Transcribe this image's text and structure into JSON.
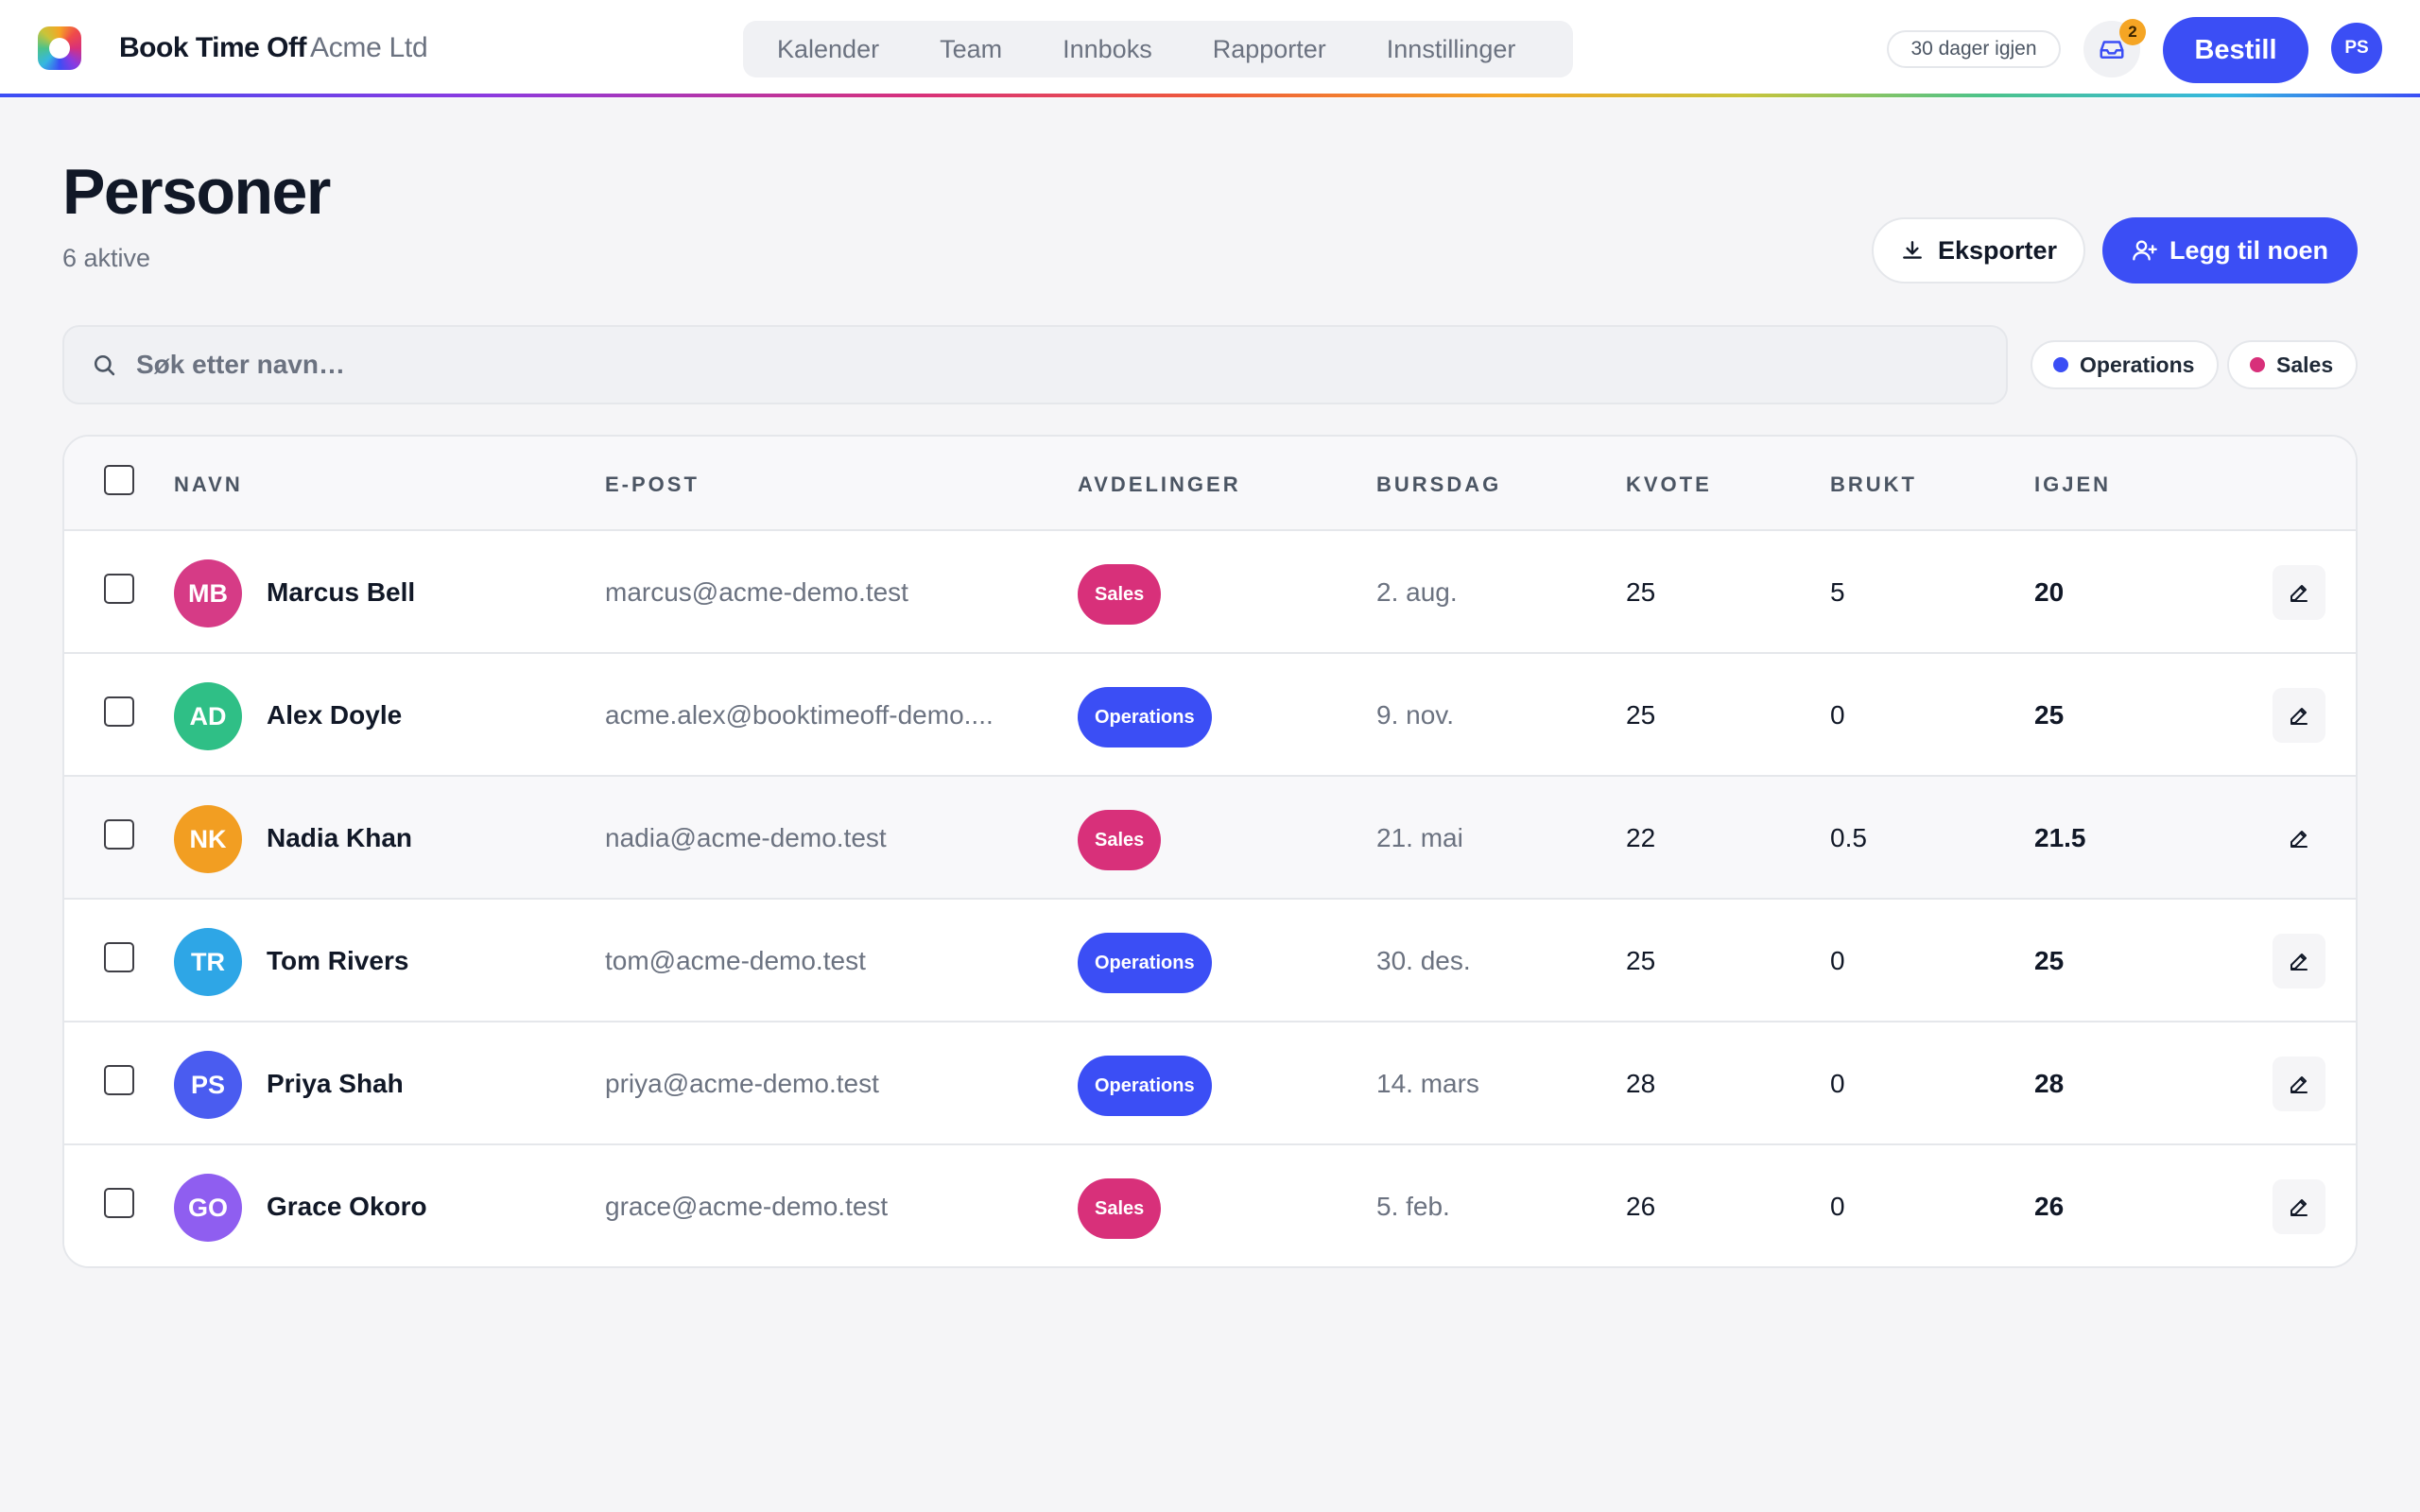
{
  "header": {
    "brand": "Book Time Off",
    "org": "Acme Ltd",
    "nav": [
      "Kalender",
      "Team",
      "Innboks",
      "Rapporter",
      "Innstillinger"
    ],
    "trial_label": "30 dager igjen",
    "inbox_count": "2",
    "order_label": "Bestill",
    "user_initials": "PS"
  },
  "page": {
    "title": "Personer",
    "subtitle": "6 aktive",
    "export_label": "Eksporter",
    "add_label": "Legg til noen"
  },
  "search": {
    "placeholder": "Søk etter navn…"
  },
  "filters": [
    {
      "label": "Operations",
      "color": "#3b4ef5"
    },
    {
      "label": "Sales",
      "color": "#d8307a"
    }
  ],
  "table": {
    "columns": [
      "NAVN",
      "E-POST",
      "AVDELINGER",
      "BURSDAG",
      "KVOTE",
      "BRUKT",
      "IGJEN"
    ],
    "rows": [
      {
        "initials": "MB",
        "avatar_color": "#d63b86",
        "name": "Marcus Bell",
        "email": "marcus@acme-demo.test",
        "dept": "Sales",
        "dept_color": "#d8307a",
        "birthday": "2. aug.",
        "quota": "25",
        "used": "5",
        "left": "20"
      },
      {
        "initials": "AD",
        "avatar_color": "#2fbf86",
        "name": "Alex Doyle",
        "email": "acme.alex@booktimeoff-demo....",
        "dept": "Operations",
        "dept_color": "#3b4ef5",
        "birthday": "9. nov.",
        "quota": "25",
        "used": "0",
        "left": "25"
      },
      {
        "initials": "NK",
        "avatar_color": "#f29e22",
        "name": "Nadia Khan",
        "email": "nadia@acme-demo.test",
        "dept": "Sales",
        "dept_color": "#d8307a",
        "birthday": "21. mai",
        "quota": "22",
        "used": "0.5",
        "left": "21.5"
      },
      {
        "initials": "TR",
        "avatar_color": "#2ea6e6",
        "name": "Tom Rivers",
        "email": "tom@acme-demo.test",
        "dept": "Operations",
        "dept_color": "#3b4ef5",
        "birthday": "30. des.",
        "quota": "25",
        "used": "0",
        "left": "25"
      },
      {
        "initials": "PS",
        "avatar_color": "#4a5cf0",
        "name": "Priya Shah",
        "email": "priya@acme-demo.test",
        "dept": "Operations",
        "dept_color": "#3b4ef5",
        "birthday": "14. mars",
        "quota": "28",
        "used": "0",
        "left": "28"
      },
      {
        "initials": "GO",
        "avatar_color": "#8f5ef0",
        "name": "Grace Okoro",
        "email": "grace@acme-demo.test",
        "dept": "Sales",
        "dept_color": "#d8307a",
        "birthday": "5. feb.",
        "quota": "26",
        "used": "0",
        "left": "26"
      }
    ]
  },
  "icons": {
    "inbox": "inbox-icon",
    "download": "download-icon",
    "add_user": "user-plus-icon",
    "search": "search-icon",
    "edit": "pencil-icon"
  }
}
